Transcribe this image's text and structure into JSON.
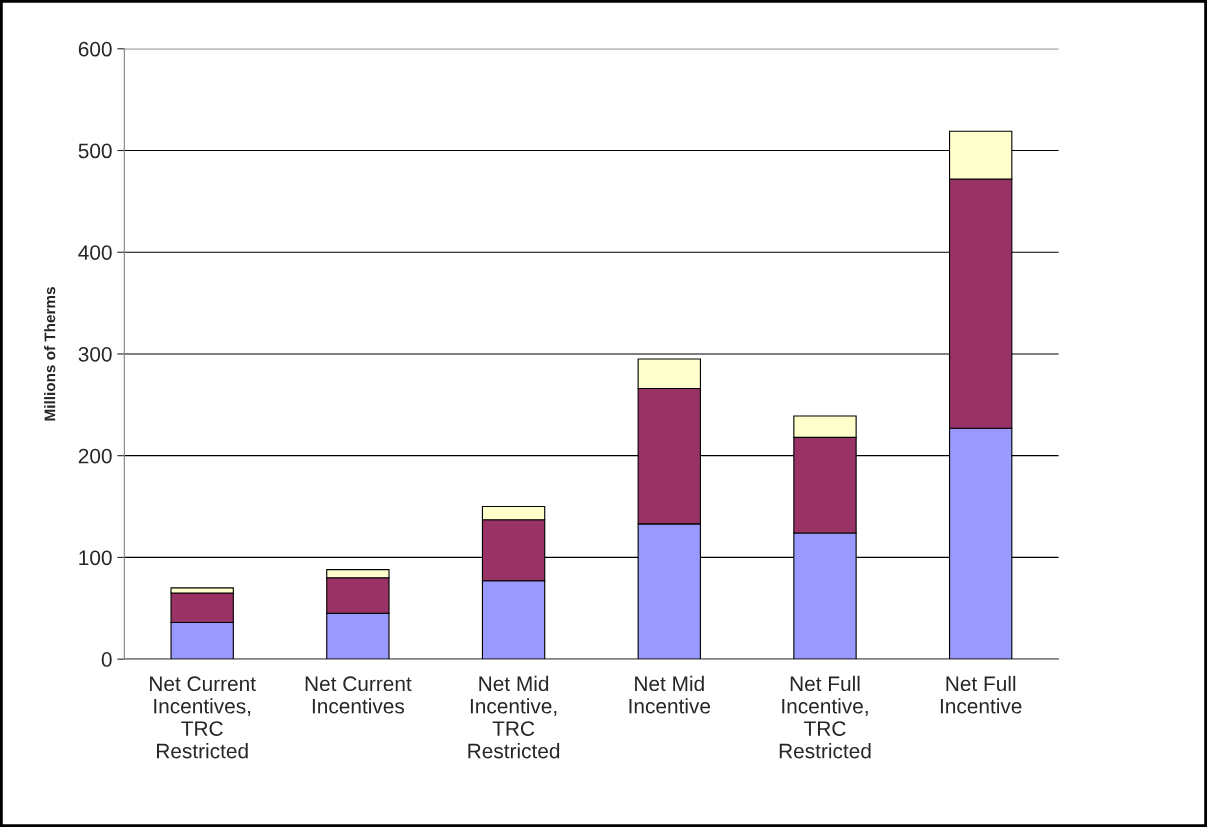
{
  "chart_data": {
    "type": "bar",
    "ylabel": "Millions of Therms",
    "categories": [
      "Net Current\nIncentives,\nTRC\nRestricted",
      "Net Current\nIncentives",
      "Net Mid\nIncentive,\nTRC\nRestricted",
      "Net Mid\nIncentive",
      "Net Full\nIncentive,\nTRC\nRestricted",
      "Net Full\nIncentive"
    ],
    "stacked": true,
    "series": [
      {
        "color": "#9999ff",
        "values": [
          36,
          45,
          77,
          133,
          124,
          227
        ]
      },
      {
        "color": "#993366",
        "values": [
          29,
          35,
          60,
          133,
          94,
          245
        ]
      },
      {
        "color": "#ffffcc",
        "values": [
          5,
          8,
          13,
          29,
          21,
          47
        ]
      }
    ],
    "ylim": [
      0,
      600
    ],
    "yticks": [
      0,
      100,
      200,
      300,
      400,
      500,
      600
    ],
    "grid": "y"
  }
}
